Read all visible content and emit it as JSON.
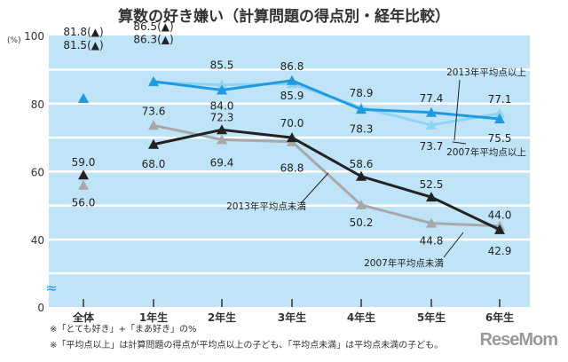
{
  "chart_data": {
    "type": "line",
    "title": "算数の好き嫌い（計算問題の得点別・経年比較）",
    "ylabel": "(%)",
    "ylim": [
      0,
      100
    ],
    "yticks": [
      "0",
      "40",
      "60",
      "80",
      "100"
    ],
    "axis_break": "≈",
    "categories": [
      "全体",
      "1年生",
      "2年生",
      "3年生",
      "4年生",
      "5年生",
      "6年生"
    ],
    "series": [
      {
        "name": "2013年平均点以上",
        "color": "#1e9be0",
        "values": [
          81.5,
          86.5,
          84.0,
          86.8,
          78.3,
          77.4,
          75.5
        ],
        "labels": [
          "81.5(▲)",
          "86.5(▲)",
          "84.0",
          "86.8",
          "78.3",
          "77.4",
          "75.5"
        ]
      },
      {
        "name": "2007年平均点以上",
        "color": "#8fd3f2",
        "values": [
          81.8,
          86.3,
          85.5,
          85.9,
          78.9,
          73.7,
          77.1
        ],
        "labels": [
          "81.8(▲)",
          "86.3(▲)",
          "85.5",
          "85.9",
          "78.9",
          "73.7",
          "77.1"
        ]
      },
      {
        "name": "2013年平均点未満",
        "color": "#222222",
        "values": [
          59.0,
          68.0,
          72.3,
          70.0,
          58.6,
          52.5,
          42.9
        ],
        "labels": [
          "59.0",
          "68.0",
          "72.3",
          "70.0",
          "58.6",
          "52.5",
          "42.9"
        ]
      },
      {
        "name": "2007年平均点未満",
        "color": "#a8a8a8",
        "values": [
          56.0,
          73.6,
          69.4,
          68.8,
          50.2,
          44.8,
          44.0
        ],
        "labels": [
          "56.0",
          "73.6",
          "69.4",
          "68.8",
          "50.2",
          "44.8",
          "44.0"
        ]
      }
    ],
    "notes": [
      "※「とても好き」+「まあ好き」の%",
      "※「平均点以上」は計算問題の得点が平均点以上の子ども、「平均点未満」は平均点未満の子ども。"
    ],
    "logo": "ReseMom"
  }
}
